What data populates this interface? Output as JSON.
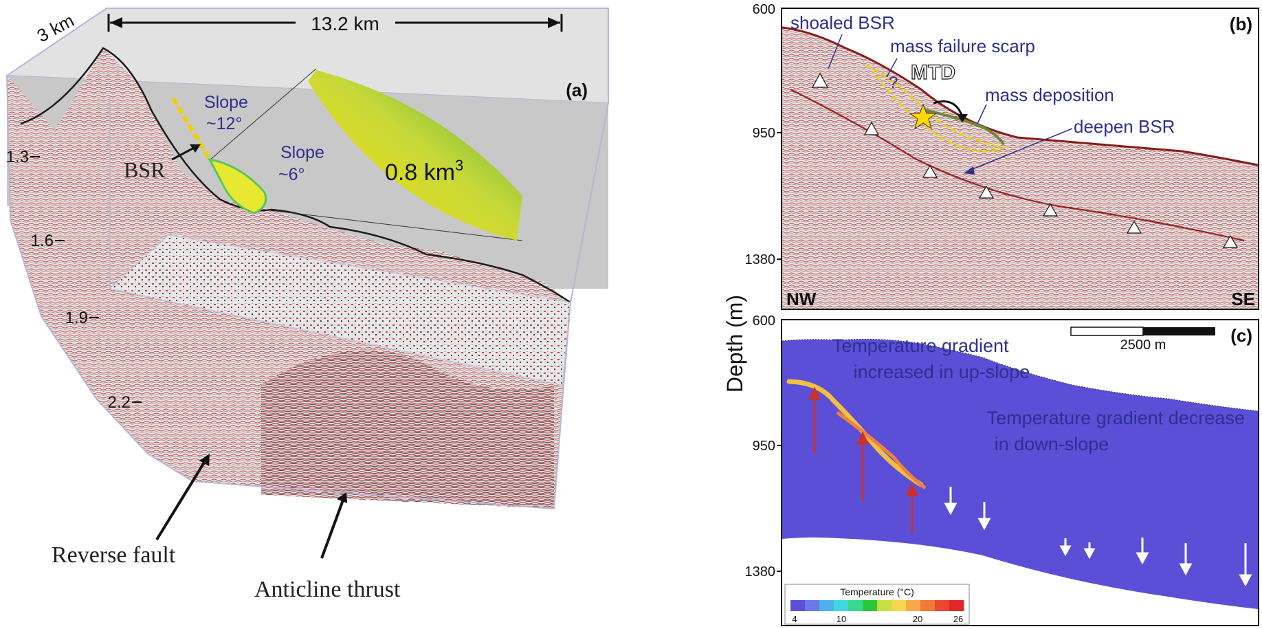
{
  "panel_a": {
    "tag": "(a)",
    "width_label": "13.2 km",
    "depth_label": "3 km",
    "axis_ticks": [
      "1.3",
      "1.6",
      "1.9",
      "2.2"
    ],
    "slope_upper": [
      "Slope",
      "~12°"
    ],
    "slope_lower": [
      "Slope",
      "~6°"
    ],
    "bsr_label": "BSR",
    "volume_label": "0.8 km",
    "volume_exp": "3",
    "reverse_fault": "Reverse fault",
    "anticline": "Anticline thrust"
  },
  "panel_b": {
    "tag": "(b)",
    "ticks": [
      "600",
      "950",
      "1380"
    ],
    "shoaled_bsr": "shoaled BSR",
    "scarp": "mass failure scarp",
    "question": "?",
    "mtd": "MTD",
    "deposition": "mass deposition",
    "deepen_bsr": "deepen BSR",
    "nw": "NW",
    "se": "SE"
  },
  "panel_c": {
    "tag": "(c)",
    "ticks": [
      "600",
      "950",
      "1380"
    ],
    "scale_label": "2500 m",
    "note_up": [
      "Temperature gradient",
      "increased in up-slope"
    ],
    "note_down": [
      "Temperature gradient decrease",
      "in down-slope"
    ],
    "legend_title": "Temperature (°C)",
    "legend_ticks": [
      "4",
      "10",
      "20",
      "26"
    ],
    "legend_colors": [
      "#5a4fd6",
      "#6b78e8",
      "#4fb0f0",
      "#3fd8e0",
      "#38d890",
      "#28c838",
      "#c8e040",
      "#f6d850",
      "#f8a848",
      "#f07838",
      "#e84830",
      "#e02828"
    ]
  },
  "shared": {
    "depth_axis": "Depth (m)"
  }
}
